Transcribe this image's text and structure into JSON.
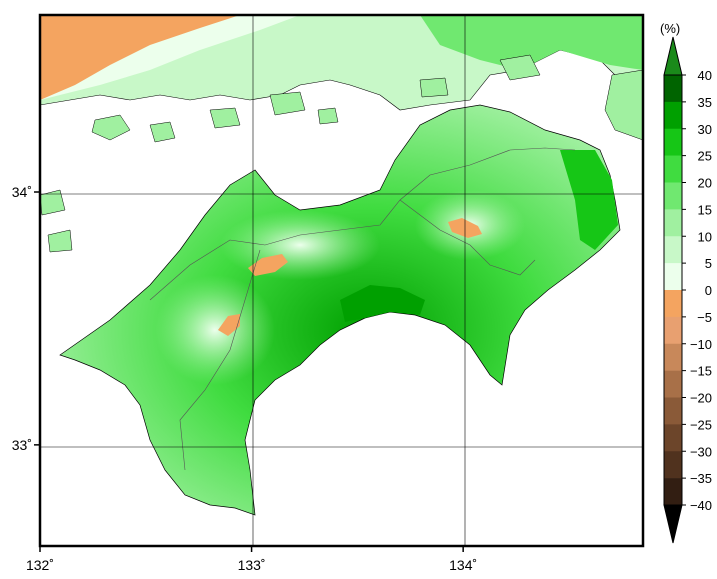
{
  "map": {
    "lon_range": [
      132,
      134.85
    ],
    "lat_range": [
      32.6,
      34.7
    ],
    "x_ticks": [
      {
        "value": 132,
        "label": "132˚"
      },
      {
        "value": 133,
        "label": "133˚"
      },
      {
        "value": 134,
        "label": "134˚"
      }
    ],
    "y_ticks": [
      {
        "value": 33,
        "label": "33˚"
      },
      {
        "value": 34,
        "label": "34˚"
      }
    ],
    "grid": true
  },
  "colorbar": {
    "unit": "(%)",
    "labels": [
      "40",
      "35",
      "30",
      "25",
      "20",
      "15",
      "10",
      "5",
      "0",
      "−5",
      "−10",
      "−15",
      "−20",
      "−25",
      "−30",
      "−35",
      "−40"
    ],
    "positive_colors": [
      "#006400",
      "#00a000",
      "#16c616",
      "#40dc40",
      "#70e870",
      "#a0f0a0",
      "#c8f8c8",
      "#ecffec"
    ],
    "negative_colors": [
      "#f4a460",
      "#e8a070",
      "#c8885a",
      "#a87048",
      "#8a5a38",
      "#6c452a",
      "#50321e",
      "#321e12"
    ],
    "high_extension_color": "#1a8a1a",
    "low_extension_color": "#000000"
  },
  "colors": {
    "frame": "#000000",
    "water": "#ffffff",
    "coast": "#000000"
  }
}
